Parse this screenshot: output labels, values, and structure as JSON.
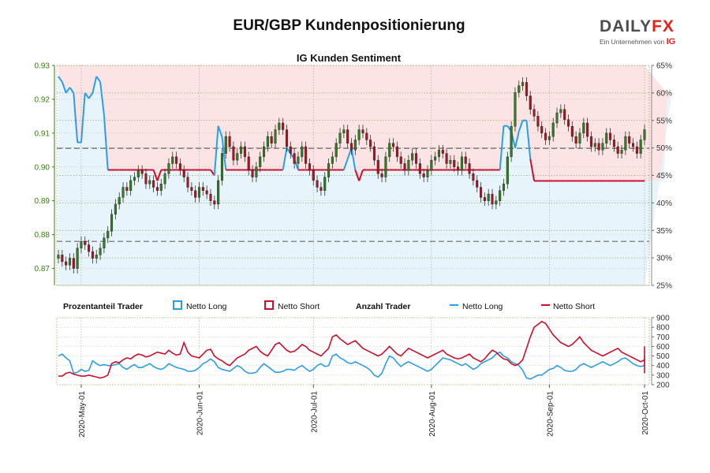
{
  "header": {
    "title": "EUR/GBP Kundenpositionierung",
    "logo_text_a": "DAILY",
    "logo_text_b": "FX",
    "logo_sub": "Ein Unternehmen von",
    "logo_ig": "IG"
  },
  "legend": {
    "group1": "Prozentanteil Trader",
    "group2": "Anzahl Trader",
    "long": "Netto Long",
    "short": "Netto Short"
  },
  "colors": {
    "long": "#2d9de6",
    "short": "#c8102e",
    "long_fill": "#e8f4fc",
    "short_fill": "#fde4e4",
    "candle_up": "#2e7d1f",
    "candle_down": "#b01020",
    "price_axis": "#3b7a14",
    "grid": "#9aa56a"
  },
  "chart_data": [
    {
      "type": "candlestick",
      "title": "IG Kunden Sentiment",
      "y_left_ticks": [
        "0.87",
        "0.88",
        "0.89",
        "0.90",
        "0.91",
        "0.92",
        "0.93"
      ],
      "y_right_ticks": [
        "25%",
        "30%",
        "35%",
        "40%",
        "45%",
        "50%",
        "55%",
        "60%",
        "65%"
      ],
      "ylim_price": [
        0.865,
        0.93
      ],
      "ylim_percent": [
        25,
        65
      ],
      "reference_lines_price": [
        0.9055,
        0.878
      ],
      "x_ticks": [
        "2020-May-01",
        "2020-Jun-01",
        "2020-Jul-01",
        "2020-Aug-01",
        "2020-Sep-01",
        "2020-Oct-01"
      ],
      "price_close": [
        0.874,
        0.872,
        0.871,
        0.873,
        0.87,
        0.876,
        0.878,
        0.877,
        0.875,
        0.873,
        0.874,
        0.876,
        0.879,
        0.881,
        0.886,
        0.889,
        0.891,
        0.894,
        0.893,
        0.896,
        0.897,
        0.899,
        0.898,
        0.895,
        0.896,
        0.894,
        0.893,
        0.895,
        0.898,
        0.901,
        0.903,
        0.901,
        0.899,
        0.897,
        0.894,
        0.893,
        0.891,
        0.894,
        0.893,
        0.892,
        0.89,
        0.889,
        0.896,
        0.904,
        0.909,
        0.906,
        0.902,
        0.904,
        0.906,
        0.903,
        0.899,
        0.897,
        0.9,
        0.903,
        0.906,
        0.909,
        0.907,
        0.911,
        0.913,
        0.911,
        0.906,
        0.904,
        0.901,
        0.903,
        0.906,
        0.901,
        0.899,
        0.896,
        0.894,
        0.893,
        0.897,
        0.901,
        0.903,
        0.907,
        0.91,
        0.911,
        0.907,
        0.905,
        0.908,
        0.911,
        0.91,
        0.908,
        0.906,
        0.902,
        0.898,
        0.897,
        0.903,
        0.907,
        0.906,
        0.903,
        0.901,
        0.899,
        0.902,
        0.904,
        0.901,
        0.898,
        0.897,
        0.899,
        0.902,
        0.903,
        0.905,
        0.904,
        0.901,
        0.902,
        0.9,
        0.899,
        0.903,
        0.901,
        0.898,
        0.896,
        0.894,
        0.891,
        0.89,
        0.892,
        0.889,
        0.89,
        0.893,
        0.895,
        0.903,
        0.912,
        0.922,
        0.924,
        0.925,
        0.921,
        0.917,
        0.915,
        0.912,
        0.91,
        0.908,
        0.909,
        0.913,
        0.916,
        0.917,
        0.914,
        0.912,
        0.909,
        0.907,
        0.91,
        0.913,
        0.909,
        0.906,
        0.907,
        0.905,
        0.907,
        0.91,
        0.908,
        0.906,
        0.904,
        0.905,
        0.909,
        0.907,
        0.906,
        0.904,
        0.908,
        0.911
      ],
      "percent_long": [
        63,
        62,
        60,
        61,
        60,
        51,
        51,
        60,
        59,
        60,
        63,
        62,
        56,
        46,
        46,
        46,
        46,
        46,
        46,
        46,
        46,
        46,
        46,
        46,
        46,
        46,
        44,
        46,
        46,
        46,
        46,
        46,
        46,
        46,
        46,
        46,
        46,
        46,
        46,
        46,
        46,
        45,
        54,
        52,
        46,
        46,
        46,
        46,
        46,
        46,
        46,
        46,
        46,
        46,
        46,
        46,
        46,
        46,
        46,
        46,
        50,
        49,
        48,
        46,
        46,
        46,
        46,
        46,
        46,
        46,
        46,
        46,
        46,
        46,
        46,
        46,
        48,
        50,
        46,
        44,
        46,
        46,
        46,
        46,
        46,
        46,
        46,
        46,
        46,
        46,
        46,
        46,
        46,
        46,
        46,
        46,
        46,
        46,
        46,
        46,
        46,
        46,
        46,
        46,
        46,
        46,
        46,
        46,
        46,
        46,
        46,
        46,
        46,
        46,
        46,
        46,
        46,
        54,
        54,
        53,
        50,
        53,
        55,
        55,
        48,
        44,
        44,
        44,
        44,
        44,
        44,
        44,
        44,
        44,
        44,
        44,
        44,
        44,
        44,
        44,
        44,
        44,
        44,
        44,
        44,
        44,
        44,
        44,
        44,
        44,
        44,
        44,
        44,
        44,
        44,
        44,
        44,
        44,
        44,
        44,
        59,
        59
      ]
    },
    {
      "type": "line",
      "y_ticks": [
        "200",
        "300",
        "400",
        "500",
        "600",
        "700",
        "800",
        "900"
      ],
      "ylim": [
        200,
        900
      ],
      "series": [
        {
          "name": "Netto Long",
          "values": [
            500,
            520,
            480,
            450,
            320,
            330,
            360,
            340,
            350,
            450,
            420,
            400,
            410,
            400,
            400,
            410,
            420,
            380,
            360,
            390,
            410,
            380,
            380,
            400,
            420,
            390,
            370,
            360,
            380,
            420,
            400,
            380,
            370,
            360,
            340,
            340,
            350,
            380,
            420,
            440,
            470,
            440,
            380,
            360,
            350,
            340,
            370,
            400,
            380,
            340,
            320,
            320,
            330,
            380,
            420,
            390,
            360,
            330,
            330,
            340,
            360,
            360,
            350,
            380,
            400,
            370,
            340,
            360,
            400,
            420,
            390,
            400,
            500,
            520,
            480,
            460,
            430,
            420,
            440,
            420,
            400,
            380,
            350,
            300,
            280,
            320,
            420,
            500,
            480,
            430,
            390,
            420,
            440,
            420,
            400,
            380,
            360,
            340,
            360,
            400,
            440,
            480,
            470,
            460,
            440,
            420,
            400,
            420,
            390,
            360,
            380,
            420,
            440,
            460,
            480,
            520,
            540,
            500,
            480,
            440,
            420,
            400,
            350,
            270,
            260,
            280,
            300,
            300,
            330,
            360,
            370,
            400,
            380,
            350,
            340,
            340,
            360,
            400,
            420,
            400,
            380,
            400,
            420,
            440,
            420,
            400,
            420,
            440,
            470,
            480,
            450,
            420,
            400,
            390,
            400,
            440,
            480,
            500,
            480,
            420,
            500
          ]
        },
        {
          "name": "Netto Short",
          "values": [
            290,
            290,
            320,
            330,
            310,
            300,
            290,
            290,
            300,
            290,
            280,
            270,
            280,
            300,
            420,
            440,
            430,
            460,
            480,
            470,
            500,
            520,
            510,
            490,
            500,
            520,
            540,
            530,
            520,
            560,
            530,
            510,
            520,
            640,
            540,
            500,
            490,
            480,
            520,
            560,
            570,
            500,
            470,
            450,
            420,
            400,
            440,
            480,
            500,
            520,
            560,
            580,
            600,
            550,
            520,
            500,
            560,
            620,
            640,
            600,
            560,
            540,
            550,
            580,
            620,
            600,
            560,
            540,
            520,
            500,
            540,
            580,
            700,
            720,
            680,
            650,
            620,
            640,
            660,
            620,
            580,
            560,
            540,
            520,
            500,
            520,
            560,
            600,
            560,
            520,
            500,
            540,
            580,
            560,
            540,
            520,
            500,
            480,
            500,
            520,
            540,
            560,
            520,
            500,
            480,
            470,
            480,
            500,
            520,
            480,
            460,
            440,
            470,
            520,
            560,
            540,
            500,
            470,
            460,
            420,
            400,
            420,
            460,
            580,
            700,
            800,
            830,
            860,
            840,
            780,
            720,
            680,
            640,
            620,
            600,
            620,
            660,
            700,
            640,
            600,
            560,
            540,
            520,
            500,
            520,
            540,
            560,
            580,
            540,
            520,
            500,
            480,
            460,
            440,
            460,
            480,
            500,
            520,
            540,
            580,
            600,
            320
          ]
        }
      ]
    }
  ]
}
